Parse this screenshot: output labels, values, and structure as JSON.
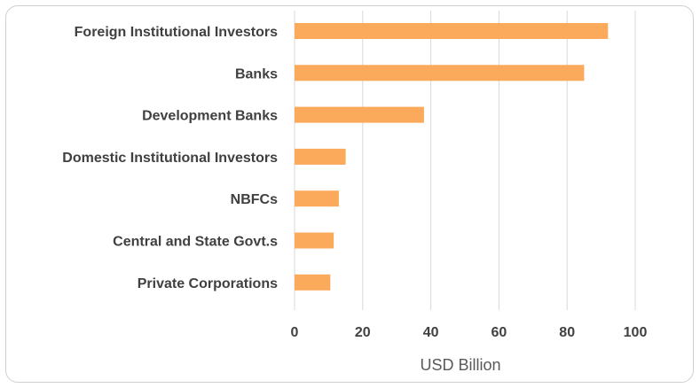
{
  "chart_data": {
    "type": "bar",
    "orientation": "horizontal",
    "categories": [
      "Foreign Institutional Investors",
      "Banks",
      "Development Banks",
      "Domestic Institutional Investors",
      "NBFCs",
      "Central and State Govt.s",
      "Private Corporations"
    ],
    "values": [
      92,
      85,
      38,
      15,
      13,
      11.5,
      10.5
    ],
    "xlabel": "USD Billion",
    "ylabel": "",
    "title": "",
    "xlim": [
      0,
      100
    ],
    "xticks": [
      0,
      20,
      40,
      60,
      80,
      100
    ],
    "grid": "vertical",
    "legend": "none",
    "bar_color": "#FBA95B"
  }
}
